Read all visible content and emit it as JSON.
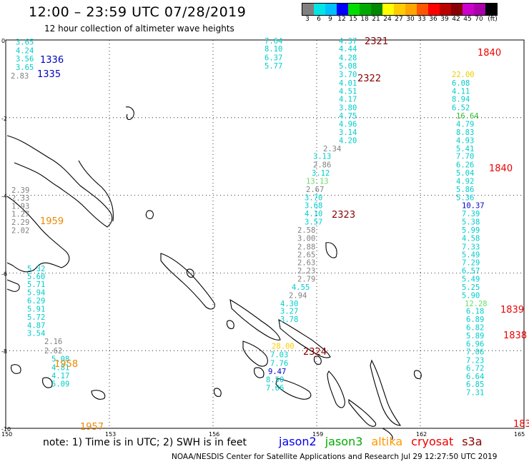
{
  "header": {
    "title": "12:00 – 23:59 UTC 07/28/2019",
    "subtitle": "12 hour collection of altimeter wave heights"
  },
  "scale": {
    "colors": [
      "#808080",
      "#00e5e5",
      "#00bfff",
      "#0000ff",
      "#00dd00",
      "#00aa00",
      "#008800",
      "#ffff00",
      "#ffcc00",
      "#ffa500",
      "#ff5500",
      "#ff0000",
      "#bb0000",
      "#880000",
      "#cc00cc",
      "#aa00aa",
      "#000000"
    ],
    "labels": [
      "3",
      "6",
      "9",
      "12",
      "15",
      "18",
      "21",
      "24",
      "27",
      "30",
      "33",
      "36",
      "39",
      "42",
      "45",
      "70"
    ],
    "unit": "(ft)"
  },
  "axes": {
    "lat_labels": [
      "0",
      "-2",
      "-4",
      "-6",
      "-8",
      "-10"
    ],
    "lon_labels": [
      "150",
      "153",
      "156",
      "159",
      "162",
      "165"
    ]
  },
  "tracks": [
    {
      "color": "#00cccc",
      "points": [
        [
          3.65,
          0.05
        ],
        [
          4.24,
          0.27
        ],
        [
          3.56,
          0.48
        ],
        [
          3.65,
          0.7
        ]
      ]
    },
    {
      "color": "#808080",
      "points": [
        [
          2.83,
          0.92
        ]
      ]
    },
    {
      "color": "#808080",
      "points": [
        [
          2.39,
          3.86
        ],
        [
          2.33,
          4.06
        ],
        [
          1.93,
          4.27
        ],
        [
          1.27,
          4.48
        ],
        [
          2.29,
          4.69
        ],
        [
          2.02,
          4.9
        ]
      ]
    },
    {
      "color": "#00cccc",
      "points": [
        [
          5.32,
          5.88
        ],
        [
          5.6,
          6.08
        ],
        [
          5.71,
          6.29
        ],
        [
          5.94,
          6.5
        ],
        [
          6.29,
          6.71
        ],
        [
          5.91,
          6.92
        ],
        [
          5.72,
          7.13
        ],
        [
          4.87,
          7.34
        ],
        [
          3.54,
          7.55
        ]
      ]
    },
    {
      "color": "#808080",
      "points": [
        [
          2.16,
          7.76
        ],
        [
          2.62,
          8.0
        ]
      ]
    },
    {
      "color": "#00cccc",
      "points": [
        [
          5.08,
          8.21
        ],
        [
          4.81,
          8.43
        ],
        [
          4.17,
          8.64
        ],
        [
          5.09,
          8.85
        ]
      ]
    },
    {
      "color": "#00cccc",
      "points": [
        [
          4.37,
          0.02
        ],
        [
          4.44,
          0.22
        ],
        [
          4.28,
          0.45
        ],
        [
          5.08,
          0.66
        ],
        [
          3.7,
          0.88
        ],
        [
          4.01,
          1.1
        ],
        [
          4.51,
          1.31
        ],
        [
          4.17,
          1.52
        ],
        [
          3.8,
          1.74
        ],
        [
          4.75,
          1.95
        ],
        [
          4.96,
          2.16
        ],
        [
          3.14,
          2.37
        ],
        [
          4.2,
          2.58
        ]
      ]
    },
    {
      "color": "#808080",
      "points": [
        [
          2.34,
          2.79
        ]
      ]
    },
    {
      "color": "#00cccc",
      "points": [
        [
          3.13,
          2.99
        ]
      ]
    },
    {
      "color": "#808080",
      "points": [
        [
          2.86,
          3.21
        ]
      ]
    },
    {
      "color": "#00cccc",
      "points": [
        [
          3.12,
          3.42
        ]
      ]
    },
    {
      "color": "#66dd66",
      "points": [
        [
          13.13,
          3.63
        ]
      ]
    },
    {
      "color": "#808080",
      "points": [
        [
          2.67,
          3.84
        ]
      ]
    },
    {
      "color": "#00cccc",
      "points": [
        [
          3.7,
          4.05
        ],
        [
          3.68,
          4.26
        ],
        [
          4.1,
          4.47
        ],
        [
          3.57,
          4.68
        ]
      ]
    },
    {
      "color": "#808080",
      "points": [
        [
          2.58,
          4.89
        ],
        [
          3.0,
          5.1
        ],
        [
          2.88,
          5.32
        ],
        [
          2.65,
          5.52
        ],
        [
          2.63,
          5.73
        ],
        [
          2.23,
          5.94
        ],
        [
          2.79,
          6.15
        ]
      ]
    },
    {
      "color": "#00cccc",
      "points": [
        [
          4.55,
          6.36
        ]
      ]
    },
    {
      "color": "#808080",
      "points": [
        [
          2.94,
          6.57
        ]
      ]
    },
    {
      "color": "#00cccc",
      "points": [
        [
          4.3,
          6.78
        ],
        [
          3.27,
          6.98
        ],
        [
          3.78,
          7.19
        ]
      ]
    },
    {
      "color": "#ffcc00",
      "points": [
        [
          28.0,
          7.88
        ]
      ]
    },
    {
      "color": "#00cccc",
      "points": [
        [
          7.03,
          8.1
        ],
        [
          7.76,
          8.32
        ]
      ]
    },
    {
      "color": "#0000cc",
      "points": [
        [
          9.47,
          8.53
        ]
      ]
    },
    {
      "color": "#00cccc",
      "points": [
        [
          8.5,
          8.74
        ],
        [
          7.66,
          8.95
        ]
      ]
    },
    {
      "color": "#00cccc",
      "points": [
        [
          7.64,
          0.02
        ],
        [
          8.1,
          0.22
        ],
        [
          6.37,
          0.45
        ],
        [
          5.77,
          0.66
        ]
      ]
    },
    {
      "color": "#eecc00",
      "points": [
        [
          22.0,
          0.88
        ]
      ]
    },
    {
      "color": "#00cccc",
      "points": [
        [
          6.08,
          1.1
        ],
        [
          4.11,
          1.31
        ],
        [
          8.94,
          1.52
        ],
        [
          6.52,
          1.74
        ]
      ]
    },
    {
      "color": "#33bb33",
      "points": [
        [
          16.64,
          1.95
        ]
      ]
    },
    {
      "color": "#00cccc",
      "points": [
        [
          4.79,
          2.16
        ],
        [
          8.83,
          2.37
        ],
        [
          4.93,
          2.58
        ],
        [
          5.41,
          2.79
        ],
        [
          7.7,
          2.99
        ],
        [
          6.26,
          3.21
        ],
        [
          5.04,
          3.42
        ],
        [
          4.92,
          3.63
        ],
        [
          5.86,
          3.84
        ],
        [
          5.36,
          4.05
        ]
      ]
    },
    {
      "color": "#0000cc",
      "points": [
        [
          10.37,
          4.26
        ]
      ]
    },
    {
      "color": "#00cccc",
      "points": [
        [
          7.39,
          4.47
        ],
        [
          5.38,
          4.68
        ],
        [
          5.99,
          4.89
        ],
        [
          4.58,
          5.1
        ],
        [
          7.33,
          5.32
        ],
        [
          5.49,
          5.52
        ],
        [
          7.29,
          5.73
        ],
        [
          6.57,
          5.94
        ],
        [
          5.49,
          6.15
        ],
        [
          5.25,
          6.36
        ],
        [
          5.9,
          6.57
        ]
      ]
    },
    {
      "color": "#66dd66",
      "points": [
        [
          12.28,
          6.78
        ]
      ]
    },
    {
      "color": "#00cccc",
      "points": [
        [
          6.18,
          6.98
        ],
        [
          6.89,
          7.19
        ],
        [
          6.82,
          7.4
        ],
        [
          5.89,
          7.61
        ],
        [
          6.96,
          7.82
        ],
        [
          7.06,
          8.02
        ],
        [
          7.23,
          8.24
        ],
        [
          6.72,
          8.45
        ],
        [
          6.64,
          8.66
        ],
        [
          6.85,
          8.86
        ],
        [
          7.31,
          9.07
        ]
      ]
    }
  ],
  "time_labels": [
    {
      "text": "1336",
      "color": "#0000bb"
    },
    {
      "text": "1335",
      "color": "#0000bb"
    },
    {
      "text": "1959",
      "color": "#ee8800"
    },
    {
      "text": "1958",
      "color": "#ee8800"
    },
    {
      "text": "1957",
      "color": "#ee8800"
    },
    {
      "text": "2321",
      "color": "#880000"
    },
    {
      "text": "2322",
      "color": "#880000"
    },
    {
      "text": "2323",
      "color": "#880000"
    },
    {
      "text": "2324",
      "color": "#880000"
    },
    {
      "text": "1840",
      "color": "#ee0000"
    },
    {
      "text": "1840",
      "color": "#ee0000"
    },
    {
      "text": "1839",
      "color": "#ee0000"
    },
    {
      "text": "1838",
      "color": "#ee0000"
    },
    {
      "text": "183",
      "color": "#ee0000"
    }
  ],
  "footer": {
    "note": "note: 1) Time is in UTC; 2) SWH is in feet",
    "legend": [
      {
        "label": "jason2",
        "color": "#0000ee"
      },
      {
        "label": "jason3",
        "color": "#00aa00"
      },
      {
        "label": "altika",
        "color": "#ff9900"
      },
      {
        "label": "cryosat",
        "color": "#ee0000"
      },
      {
        "label": "s3a",
        "color": "#880000"
      }
    ],
    "credit": "NOAA/NESDIS Center for Satellite Applications and Research     Jul 29 12:27:50 UTC 2019"
  }
}
